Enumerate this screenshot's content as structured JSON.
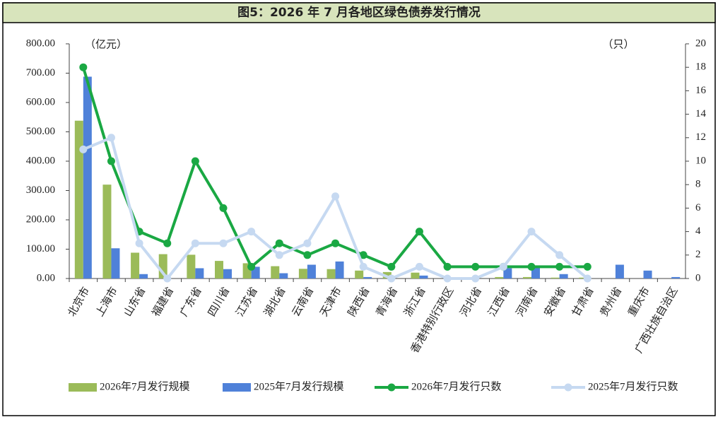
{
  "chart_data": {
    "type": "combo",
    "title": "图5：2026 年 7 月各地区绿色债券发行情况",
    "y_unit": "（亿元）",
    "y2_unit": "（只）",
    "categories": [
      "北京市",
      "上海市",
      "山东省",
      "福建省",
      "广东省",
      "四川省",
      "江苏省",
      "湖北省",
      "云南省",
      "天津市",
      "陕西省",
      "青海省",
      "浙江省",
      "香港特别行政区",
      "河北省",
      "江西省",
      "河南省",
      "安徽省",
      "甘肃省",
      "贵州省",
      "重庆市",
      "广西壮族自治区"
    ],
    "series": [
      {
        "name": "2026年7月发行规模",
        "type": "bar",
        "color": "#9bbb59",
        "values": [
          538,
          320,
          88,
          83,
          81,
          60,
          52,
          42,
          33,
          32,
          27,
          22,
          20,
          0,
          3,
          5,
          5,
          3,
          3,
          0,
          0,
          0
        ]
      },
      {
        "name": "2025年7月发行规模",
        "type": "bar",
        "color": "#4f81d9",
        "values": [
          688,
          103,
          15,
          0,
          35,
          32,
          40,
          18,
          47,
          58,
          5,
          0,
          10,
          0,
          0,
          35,
          40,
          15,
          0,
          47,
          27,
          5
        ]
      },
      {
        "name": "2026年7月发行只数",
        "type": "line",
        "axis": "y2",
        "color": "#1aa843",
        "values": [
          18,
          10,
          4,
          3,
          10,
          6,
          1,
          3,
          2,
          3,
          2,
          1,
          4,
          1,
          1,
          1,
          1,
          1,
          1,
          null,
          null,
          null
        ]
      },
      {
        "name": "2025年7月发行只数",
        "type": "line",
        "axis": "y2",
        "color": "#c6d9f1",
        "values": [
          11,
          12,
          3,
          0,
          3,
          3,
          4,
          2,
          3,
          7,
          1,
          0,
          1,
          0,
          0,
          1,
          4,
          2,
          0,
          null,
          null,
          null
        ]
      }
    ],
    "ylim": [
      0,
      800
    ],
    "yticks": [
      {
        "value": 0,
        "label": "0.00"
      },
      {
        "value": 100,
        "label": "100.00"
      },
      {
        "value": 200,
        "label": "200.00"
      },
      {
        "value": 300,
        "label": "300.00"
      },
      {
        "value": 400,
        "label": "400.00"
      },
      {
        "value": 500,
        "label": "500.00"
      },
      {
        "value": 600,
        "label": "600.00"
      },
      {
        "value": 700,
        "label": "700.00"
      },
      {
        "value": 800,
        "label": "800.00"
      }
    ],
    "y2lim": [
      0,
      20
    ],
    "y2ticks": [
      0,
      2,
      4,
      6,
      8,
      10,
      12,
      14,
      16,
      18,
      20
    ],
    "legend": "bottom"
  }
}
